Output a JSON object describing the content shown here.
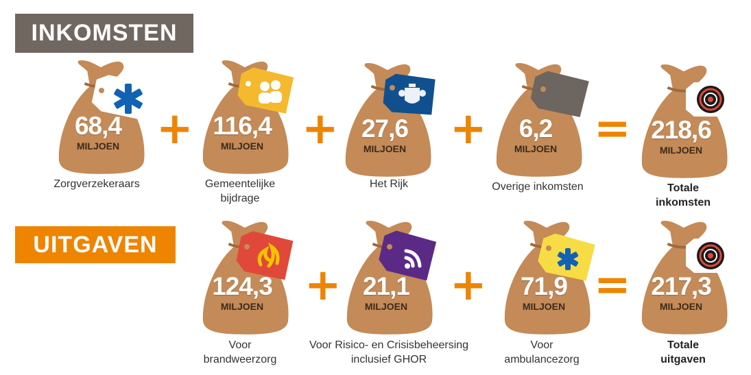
{
  "sections": {
    "income_title": "INKOMSTEN",
    "expense_title": "UITGAVEN"
  },
  "unit": "MILJOEN",
  "operators": {
    "plus": "+",
    "equals": "="
  },
  "colors": {
    "bag": "#c48a57",
    "bag_dark": "#9e6a3e",
    "orange": "#ee8400",
    "income_header": "#716761",
    "tag_blue": "#0f4f96",
    "tag_yellow": "#f5b92e",
    "tag_navy": "#11508f",
    "tag_grey": "#6d6560",
    "tag_red": "#e0493a",
    "tag_purple": "#5b2a86",
    "tag_lightyellow": "#f7dc45"
  },
  "income": [
    {
      "value": "68,4",
      "label": "Zorgverzekeraars",
      "icon": "star-of-life-icon"
    },
    {
      "value": "116,4",
      "label": "Gemeentelijke bijdrage",
      "icon": "people-icon"
    },
    {
      "value": "27,6",
      "label": "Het Rijk",
      "icon": "coat-of-arms-icon"
    },
    {
      "value": "6,2",
      "label": "Overige inkomsten",
      "icon": "blank-tag-icon"
    }
  ],
  "income_total": {
    "value": "218,6",
    "label_1": "Totale",
    "label_2": "inkomsten",
    "icon": "spiral-logo-icon"
  },
  "expenses": [
    {
      "value": "124,3",
      "label_1": "Voor",
      "label_2": "brandweerzorg",
      "icon": "flame-icon"
    },
    {
      "value": "21,1",
      "label_1": "Voor Risico- en Crisisbeheersing",
      "label_2": "inclusief GHOR",
      "icon": "rss-icon"
    },
    {
      "value": "71,9",
      "label_1": "Voor",
      "label_2": "ambulancezorg",
      "icon": "asterisk-icon"
    }
  ],
  "expense_total": {
    "value": "217,3",
    "label_1": "Totale",
    "label_2": "uitgaven",
    "icon": "spiral-logo-icon"
  }
}
